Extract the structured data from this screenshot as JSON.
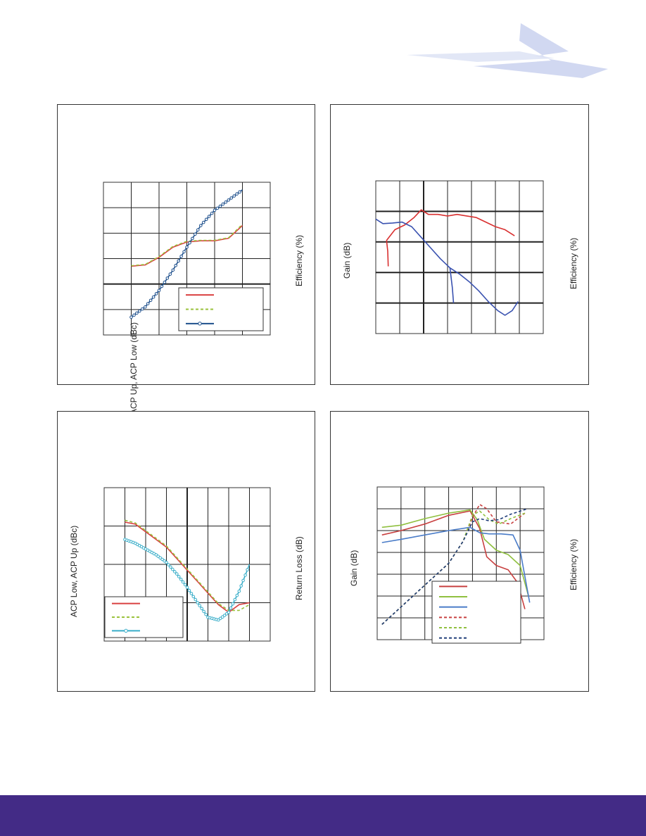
{
  "colors": {
    "footer": "#432b86",
    "logo": "#bdc7e8"
  },
  "logo": {
    "icon": "lightning-bolt-logo"
  },
  "charts": {
    "c1": {
      "ylabel_left": "ACP Up, ACP Low (dBc)",
      "ylabel_right": "Efficiency (%)"
    },
    "c2": {
      "ylabel_left": "Gain (dB)",
      "ylabel_right": "Efficiency (%)"
    },
    "c3": {
      "ylabel_left": "ACP Low, ACP Up (dBc)",
      "ylabel_right": "Return Loss (dB)"
    },
    "c4": {
      "ylabel_left": "Gain (dB)",
      "ylabel_right": "Efficiency (%)"
    }
  },
  "chart_data": [
    {
      "type": "line",
      "xlim": [
        0,
        6
      ],
      "ylim": [
        0,
        6
      ],
      "grid": true,
      "legend": "bottom-right",
      "series": [
        {
          "color": "#d94040",
          "dash": "solid",
          "marker": false,
          "x": [
            1,
            1.5,
            2,
            2.5,
            3,
            3.5,
            4,
            4.5,
            5
          ],
          "y": [
            2.7,
            2.75,
            3.05,
            3.45,
            3.65,
            3.7,
            3.7,
            3.8,
            4.3
          ]
        },
        {
          "color": "#9ac23c",
          "dash": "dashed",
          "marker": false,
          "x": [
            1,
            1.5,
            2,
            2.5,
            3,
            3.5,
            4,
            4.5,
            5
          ],
          "y": [
            2.72,
            2.77,
            3.08,
            3.48,
            3.68,
            3.72,
            3.72,
            3.82,
            4.35
          ]
        },
        {
          "color": "#1d4f8c",
          "dash": "solid",
          "marker": true,
          "x": [
            1,
            1.5,
            2,
            2.5,
            3,
            3.5,
            4,
            4.5,
            5
          ],
          "y": [
            0.7,
            1.1,
            1.75,
            2.55,
            3.45,
            4.3,
            4.9,
            5.3,
            5.7
          ]
        }
      ]
    },
    {
      "type": "line",
      "xlim": [
        0,
        7
      ],
      "ylim": [
        0,
        5
      ],
      "grid": true,
      "legend": "none",
      "series": [
        {
          "color": "#d93030",
          "dash": "solid",
          "marker": false,
          "x": [
            0.45,
            0.8,
            1.2,
            1.6,
            1.9,
            2.2,
            2.6,
            3,
            3.4,
            3.8,
            4.2,
            4.6,
            5,
            5.4,
            5.8
          ],
          "y": [
            3.05,
            3.4,
            3.55,
            3.8,
            4.05,
            3.9,
            3.9,
            3.85,
            3.9,
            3.85,
            3.8,
            3.65,
            3.5,
            3.4,
            3.2
          ]
        },
        {
          "color": "#3a52b0",
          "dash": "solid",
          "marker": false,
          "x": [
            0,
            0.3,
            0.7,
            1.1,
            1.5,
            1.9,
            2.3,
            2.7,
            3.1,
            3.5,
            3.9,
            4.3,
            4.7,
            5.1,
            5.4,
            5.7,
            5.95
          ],
          "y": [
            3.75,
            3.6,
            3.62,
            3.65,
            3.5,
            3.15,
            2.8,
            2.45,
            2.15,
            1.95,
            1.7,
            1.4,
            1.05,
            0.75,
            0.6,
            0.75,
            1.05
          ]
        },
        {
          "color": "#d93030",
          "dash": "solid",
          "marker": false,
          "x": [
            0.45,
            0.5,
            0.52
          ],
          "y": [
            3.05,
            2.7,
            2.2
          ]
        },
        {
          "color": "#3a52b0",
          "dash": "solid",
          "marker": false,
          "x": [
            3.1,
            3.2,
            3.25
          ],
          "y": [
            2.15,
            1.5,
            1.0
          ]
        }
      ]
    },
    {
      "type": "line",
      "xlim": [
        0,
        8
      ],
      "ylim": [
        0,
        4
      ],
      "grid": true,
      "legend": "bottom-left",
      "series": [
        {
          "color": "#d94040",
          "dash": "solid",
          "marker": false,
          "x": [
            1,
            1.5,
            2,
            2.5,
            3,
            3.5,
            4,
            4.5,
            5,
            5.5,
            6,
            6.5,
            7
          ],
          "y": [
            3.1,
            3.05,
            2.85,
            2.65,
            2.45,
            2.15,
            1.85,
            1.55,
            1.25,
            0.95,
            0.75,
            0.95,
            1.0
          ]
        },
        {
          "color": "#9ac23c",
          "dash": "dashed",
          "marker": false,
          "x": [
            1,
            1.5,
            2,
            2.5,
            3,
            3.5,
            4,
            4.5,
            5,
            5.5,
            6,
            6.5,
            7
          ],
          "y": [
            3.15,
            3.08,
            2.88,
            2.68,
            2.48,
            2.18,
            1.88,
            1.58,
            1.28,
            0.98,
            0.8,
            0.8,
            0.95
          ]
        },
        {
          "color": "#3aaec9",
          "dash": "solid",
          "marker": true,
          "x": [
            1,
            1.5,
            2,
            2.5,
            3,
            3.5,
            4,
            4.5,
            5,
            5.5,
            6,
            6.5,
            7
          ],
          "y": [
            2.65,
            2.55,
            2.4,
            2.25,
            2.05,
            1.75,
            1.4,
            1.0,
            0.62,
            0.55,
            0.75,
            1.3,
            2.0
          ]
        }
      ]
    },
    {
      "type": "line",
      "xlim": [
        0,
        7
      ],
      "ylim": [
        0,
        7
      ],
      "grid": true,
      "legend": "bottom-center",
      "series": [
        {
          "color": "#c84040",
          "dash": "solid",
          "marker": false,
          "x": [
            0.2,
            1,
            2,
            3,
            3.9,
            4.3,
            4.6,
            5,
            5.5,
            5.9,
            6.2
          ],
          "y": [
            4.8,
            5.0,
            5.3,
            5.7,
            5.9,
            5.1,
            3.8,
            3.4,
            3.2,
            2.6,
            1.4
          ]
        },
        {
          "color": "#90c040",
          "dash": "solid",
          "marker": false,
          "x": [
            0.2,
            1,
            2,
            3,
            3.9,
            4.2,
            4.5,
            5,
            5.5,
            6,
            6.35
          ],
          "y": [
            5.15,
            5.25,
            5.55,
            5.8,
            5.95,
            5.5,
            4.6,
            4.1,
            3.9,
            3.4,
            2.0
          ]
        },
        {
          "color": "#4a7cc8",
          "dash": "solid",
          "marker": false,
          "x": [
            0.2,
            1,
            2,
            3,
            3.9,
            4.3,
            4.7,
            5.2,
            5.7,
            6,
            6.4
          ],
          "y": [
            4.45,
            4.6,
            4.8,
            5.0,
            5.15,
            4.9,
            4.85,
            4.85,
            4.8,
            4.1,
            1.7
          ]
        },
        {
          "color": "#c84040",
          "dash": "dashed",
          "marker": false,
          "x": [
            0.2,
            1,
            2,
            3,
            3.6,
            4,
            4.3,
            4.6,
            5,
            5.6,
            6.2
          ],
          "y": [
            0.7,
            1.5,
            2.5,
            3.5,
            4.5,
            5.6,
            6.2,
            6.0,
            5.4,
            5.3,
            5.8
          ]
        },
        {
          "color": "#90c040",
          "dash": "dashed",
          "marker": false,
          "x": [
            0.2,
            1,
            2,
            3,
            3.6,
            4,
            4.3,
            4.7,
            5.1,
            5.6,
            6.2
          ],
          "y": [
            0.7,
            1.5,
            2.5,
            3.5,
            4.5,
            5.7,
            5.9,
            5.5,
            5.3,
            5.55,
            5.8
          ]
        },
        {
          "color": "#1e3c78",
          "dash": "dashed",
          "marker": false,
          "x": [
            0.2,
            1,
            2,
            3,
            3.6,
            4,
            4.3,
            4.7,
            5.1,
            5.6,
            6.3
          ],
          "y": [
            0.7,
            1.5,
            2.5,
            3.5,
            4.5,
            5.4,
            5.55,
            5.45,
            5.5,
            5.75,
            6.0
          ]
        }
      ]
    }
  ]
}
